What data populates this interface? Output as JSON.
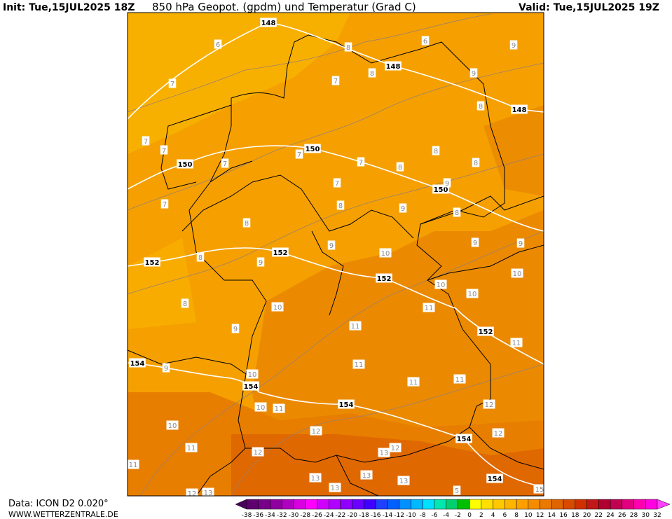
{
  "header": {
    "init": "Init: Tue,15JUL2025 18Z",
    "title": "850 hPa Geopot. (gpdm) und Temperatur (Grad C)",
    "valid": "Valid: Tue,15JUL2025 19Z"
  },
  "footer": {
    "data_source": "Data: ICON D2 0.020°",
    "website": "WWW.WETTERZENTRALE.DE"
  },
  "scale": {
    "labels": [
      -38,
      -36,
      -34,
      -32,
      -30,
      -28,
      -26,
      -24,
      -22,
      -20,
      -18,
      -16,
      -14,
      -12,
      -10,
      -8,
      -6,
      -4,
      -2,
      0,
      2,
      4,
      6,
      8,
      10,
      12,
      14,
      16,
      18,
      20,
      22,
      24,
      26,
      28,
      30,
      32
    ],
    "colors": [
      "#4b0060",
      "#600070",
      "#780088",
      "#9000a0",
      "#b000c0",
      "#d800e0",
      "#ff00ff",
      "#d000ff",
      "#b000ff",
      "#9000ff",
      "#6a00ff",
      "#4000ff",
      "#2040ff",
      "#0060ff",
      "#0090ff",
      "#00b8ff",
      "#00e0ff",
      "#00e8b0",
      "#00d070",
      "#00c000",
      "#ffff00",
      "#ffe000",
      "#ffc800",
      "#ffb400",
      "#ffa000",
      "#f58c00",
      "#eb7800",
      "#e06400",
      "#d84a00",
      "#d03000",
      "#c01818",
      "#b00030",
      "#c00050",
      "#e00080",
      "#ff00b0",
      "#ff00e0",
      "#ff40ff"
    ]
  },
  "contour_labels": [
    148,
    6,
    8,
    6,
    9,
    148,
    8,
    9,
    7,
    7,
    8,
    148,
    7,
    7,
    150,
    7,
    7,
    150,
    7,
    8,
    8,
    8,
    7,
    150,
    9,
    7,
    8,
    9,
    8,
    8,
    152,
    9,
    10,
    9,
    9,
    152,
    8,
    9,
    152,
    10,
    10,
    10,
    8,
    10,
    11,
    9,
    11,
    152,
    11,
    154,
    9,
    11,
    10,
    11,
    11,
    154,
    10,
    11,
    154,
    12,
    10,
    12,
    12,
    154,
    11,
    12,
    12,
    13,
    11,
    13,
    13,
    13,
    154,
    5,
    12,
    13,
    13,
    15
  ]
}
